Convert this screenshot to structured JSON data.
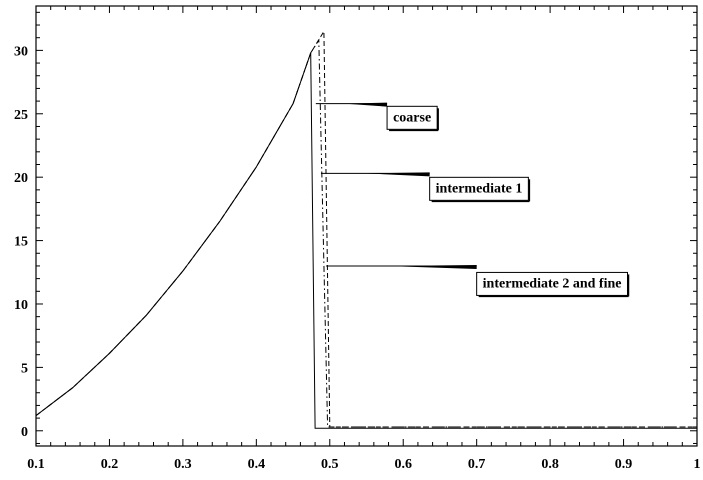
{
  "chart_data": {
    "type": "line",
    "title": "",
    "xlabel": "",
    "ylabel": "",
    "xlim": [
      0.1,
      1.0
    ],
    "ylim": [
      -1.2,
      33.5
    ],
    "xticks": [
      0.1,
      0.2,
      0.3,
      0.4,
      0.5,
      0.6,
      0.7,
      0.8,
      0.9,
      1.0
    ],
    "xtick_labels": [
      "0.1",
      "0.2",
      "0.3",
      "0.4",
      "0.5",
      "0.6",
      "0.7",
      "0.8",
      "0.9",
      "1"
    ],
    "yticks": [
      0,
      5,
      10,
      15,
      20,
      25,
      30
    ],
    "ytick_labels": [
      "0",
      "5",
      "10",
      "15",
      "20",
      "25",
      "30"
    ],
    "grid": false,
    "series": [
      {
        "style": "solid",
        "color": "#000000",
        "x": [
          0.1,
          0.15,
          0.2,
          0.25,
          0.3,
          0.35,
          0.4,
          0.45,
          0.474,
          0.48,
          0.5,
          0.6,
          0.7,
          0.8,
          0.9,
          1.0
        ],
        "y": [
          1.2,
          3.4,
          6.1,
          9.1,
          12.6,
          16.5,
          20.8,
          25.8,
          29.8,
          0.2,
          0.2,
          0.2,
          0.2,
          0.2,
          0.2,
          0.2
        ]
      },
      {
        "style": "dash-dot",
        "color": "#000000",
        "x": [
          0.1,
          0.15,
          0.2,
          0.25,
          0.3,
          0.35,
          0.4,
          0.45,
          0.474,
          0.485,
          0.497,
          0.6,
          0.7,
          0.8,
          0.9,
          1.0
        ],
        "y": [
          1.2,
          3.4,
          6.1,
          9.1,
          12.6,
          16.5,
          20.8,
          25.8,
          29.8,
          30.8,
          0.3,
          0.3,
          0.3,
          0.3,
          0.3,
          0.3
        ]
      },
      {
        "style": "dashed",
        "color": "#000000",
        "x": [
          0.1,
          0.15,
          0.2,
          0.25,
          0.3,
          0.35,
          0.4,
          0.45,
          0.474,
          0.492,
          0.5,
          0.6,
          0.7,
          0.8,
          0.9,
          1.0
        ],
        "y": [
          1.2,
          3.4,
          6.1,
          9.1,
          12.6,
          16.5,
          20.8,
          25.8,
          29.8,
          31.5,
          0.3,
          0.3,
          0.3,
          0.3,
          0.3,
          0.3
        ]
      }
    ],
    "annotations": [
      {
        "text": "coarse",
        "point": [
          0.481,
          25.8
        ],
        "label_at": [
          0.578,
          24.8
        ]
      },
      {
        "text": "intermediate 1",
        "point": [
          0.488,
          20.3
        ],
        "label_at": [
          0.636,
          19.2
        ]
      },
      {
        "text": "intermediate 2 and fine",
        "point": [
          0.495,
          13.0
        ],
        "label_at": [
          0.7,
          11.7
        ]
      }
    ]
  }
}
